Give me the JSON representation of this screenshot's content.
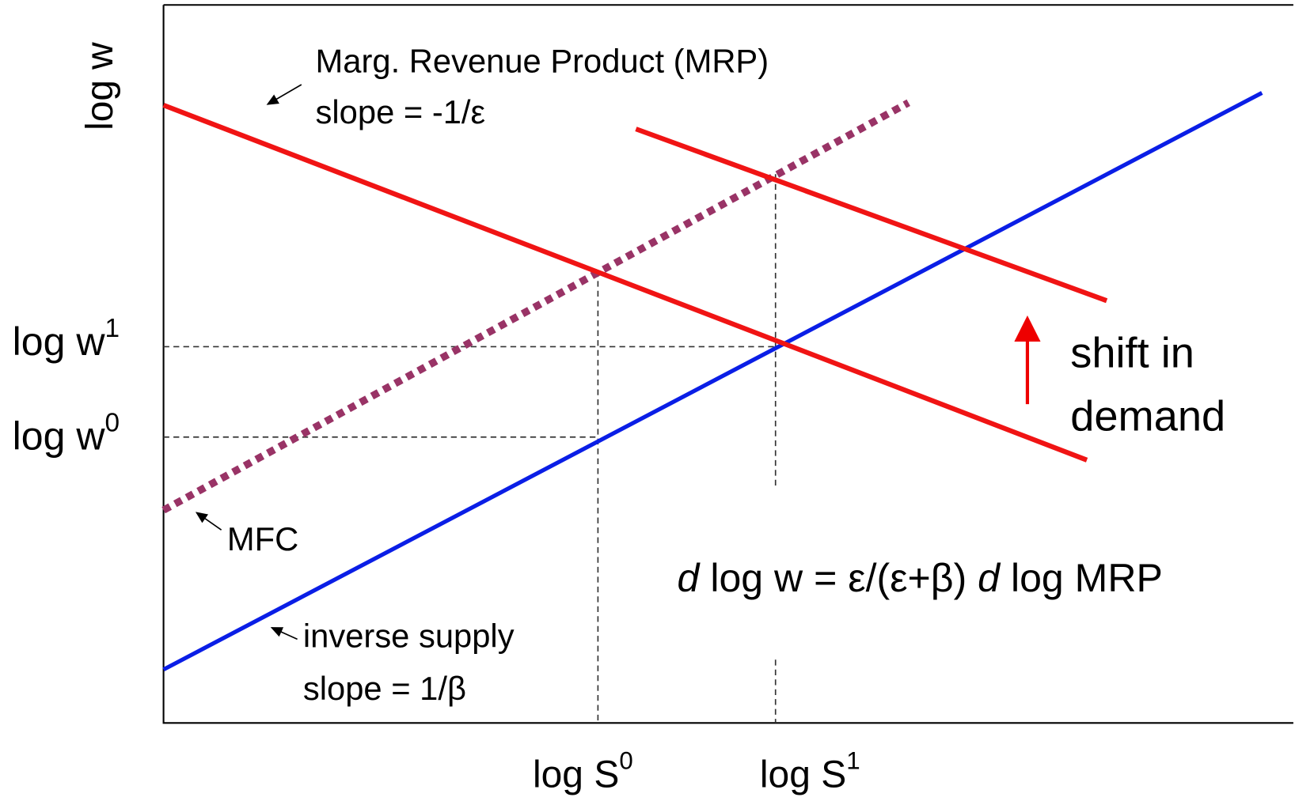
{
  "axis_labels": {
    "y": "log w"
  },
  "annotations": {
    "mrp": {
      "title": "Marg. Revenue Product (MRP)",
      "slope": "slope = -1/ε"
    },
    "mfc": "MFC",
    "supply": {
      "title": "inverse supply",
      "slope": "slope = 1/β"
    },
    "shift": [
      "shift in",
      "demand"
    ],
    "formula": [
      "d",
      "log w = ε/(ε+β)",
      "d",
      "log MRP"
    ]
  },
  "y_ticks": [
    {
      "base": "log w",
      "sup": "1"
    },
    {
      "base": "log w",
      "sup": "0"
    }
  ],
  "x_ticks": [
    {
      "base": "log S",
      "sup": "0"
    },
    {
      "base": "log S",
      "sup": "1"
    }
  ]
}
